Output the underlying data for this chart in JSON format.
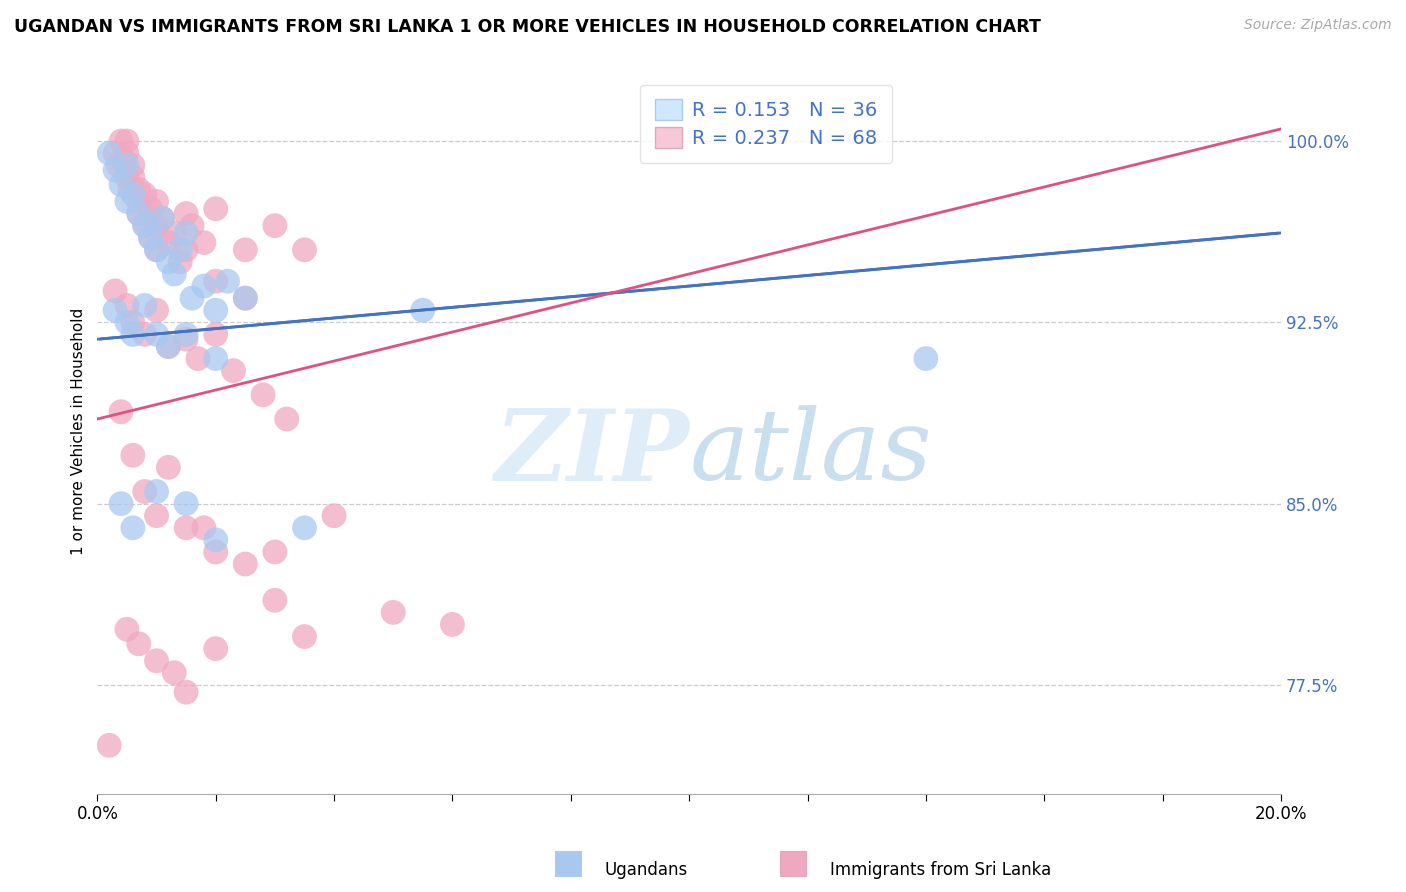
{
  "title": "UGANDAN VS IMMIGRANTS FROM SRI LANKA 1 OR MORE VEHICLES IN HOUSEHOLD CORRELATION CHART",
  "source_text": "Source: ZipAtlas.com",
  "ylabel": "1 or more Vehicles in Household",
  "ytick_vals": [
    77.5,
    85.0,
    92.5,
    100.0
  ],
  "ytick_labels": [
    "77.5%",
    "85.0%",
    "92.5%",
    "100.0%"
  ],
  "grid_yticks": [
    77.5,
    85.0,
    92.5,
    100.0
  ],
  "xlim": [
    0.0,
    20.0
  ],
  "ylim": [
    73.0,
    103.0
  ],
  "ugandan_R": 0.153,
  "ugandan_N": 36,
  "srilanka_R": 0.237,
  "srilanka_N": 68,
  "ugandan_color": "#a8c8f0",
  "srilanka_color": "#f0a8c0",
  "trendline_ugandan_color": "#4472c4",
  "trendline_srilanka_color": "#e05080",
  "legend_box_color": "#d0e8ff",
  "legend_pink_color": "#f8c8d8",
  "trendline_ugandan": [
    0.0,
    91.8,
    20.0,
    96.2
  ],
  "trendline_srilanka": [
    0.0,
    88.5,
    20.0,
    100.5
  ],
  "ugandan_points": [
    [
      0.2,
      99.5
    ],
    [
      0.3,
      98.8
    ],
    [
      0.4,
      98.2
    ],
    [
      0.5,
      99.0
    ],
    [
      0.5,
      97.5
    ],
    [
      0.6,
      97.8
    ],
    [
      0.7,
      97.0
    ],
    [
      0.8,
      96.5
    ],
    [
      0.9,
      96.0
    ],
    [
      1.0,
      95.5
    ],
    [
      1.1,
      96.8
    ],
    [
      1.2,
      95.0
    ],
    [
      1.3,
      94.5
    ],
    [
      1.4,
      95.5
    ],
    [
      1.5,
      96.2
    ],
    [
      1.6,
      93.5
    ],
    [
      1.8,
      94.0
    ],
    [
      2.0,
      93.0
    ],
    [
      2.2,
      94.2
    ],
    [
      2.5,
      93.5
    ],
    [
      0.3,
      93.0
    ],
    [
      0.5,
      92.5
    ],
    [
      0.6,
      92.0
    ],
    [
      0.8,
      93.2
    ],
    [
      1.0,
      92.0
    ],
    [
      1.2,
      91.5
    ],
    [
      1.5,
      92.0
    ],
    [
      2.0,
      91.0
    ],
    [
      0.4,
      85.0
    ],
    [
      0.6,
      84.0
    ],
    [
      1.0,
      85.5
    ],
    [
      1.5,
      85.0
    ],
    [
      5.5,
      93.0
    ],
    [
      14.0,
      91.0
    ],
    [
      2.0,
      83.5
    ],
    [
      3.5,
      84.0
    ]
  ],
  "srilanka_points": [
    [
      0.2,
      75.0
    ],
    [
      0.3,
      99.5
    ],
    [
      0.35,
      99.0
    ],
    [
      0.4,
      100.0
    ],
    [
      0.45,
      99.2
    ],
    [
      0.5,
      100.0
    ],
    [
      0.5,
      99.5
    ],
    [
      0.5,
      98.5
    ],
    [
      0.55,
      98.0
    ],
    [
      0.6,
      99.0
    ],
    [
      0.6,
      98.5
    ],
    [
      0.7,
      98.0
    ],
    [
      0.7,
      97.5
    ],
    [
      0.7,
      97.0
    ],
    [
      0.8,
      97.8
    ],
    [
      0.8,
      96.5
    ],
    [
      0.9,
      97.2
    ],
    [
      0.9,
      96.0
    ],
    [
      1.0,
      97.5
    ],
    [
      1.0,
      96.5
    ],
    [
      1.0,
      95.5
    ],
    [
      1.1,
      96.8
    ],
    [
      1.2,
      95.8
    ],
    [
      1.3,
      96.2
    ],
    [
      1.4,
      95.0
    ],
    [
      1.5,
      97.0
    ],
    [
      1.5,
      95.5
    ],
    [
      1.6,
      96.5
    ],
    [
      1.8,
      95.8
    ],
    [
      2.0,
      97.2
    ],
    [
      2.0,
      94.2
    ],
    [
      2.5,
      95.5
    ],
    [
      2.5,
      93.5
    ],
    [
      3.0,
      96.5
    ],
    [
      3.5,
      95.5
    ],
    [
      0.3,
      93.8
    ],
    [
      0.5,
      93.2
    ],
    [
      0.6,
      92.5
    ],
    [
      0.8,
      92.0
    ],
    [
      1.0,
      93.0
    ],
    [
      1.2,
      91.5
    ],
    [
      1.5,
      91.8
    ],
    [
      1.7,
      91.0
    ],
    [
      2.0,
      92.0
    ],
    [
      2.3,
      90.5
    ],
    [
      2.8,
      89.5
    ],
    [
      3.2,
      88.5
    ],
    [
      0.4,
      88.8
    ],
    [
      0.6,
      87.0
    ],
    [
      0.8,
      85.5
    ],
    [
      1.0,
      84.5
    ],
    [
      1.5,
      84.0
    ],
    [
      2.0,
      83.0
    ],
    [
      2.5,
      82.5
    ],
    [
      3.0,
      81.0
    ],
    [
      0.5,
      79.8
    ],
    [
      0.7,
      79.2
    ],
    [
      1.0,
      78.5
    ],
    [
      1.3,
      78.0
    ],
    [
      1.5,
      77.2
    ],
    [
      2.0,
      79.0
    ],
    [
      3.5,
      79.5
    ],
    [
      5.0,
      80.5
    ],
    [
      6.0,
      80.0
    ],
    [
      3.0,
      83.0
    ],
    [
      4.0,
      84.5
    ],
    [
      1.8,
      84.0
    ],
    [
      1.2,
      86.5
    ]
  ]
}
